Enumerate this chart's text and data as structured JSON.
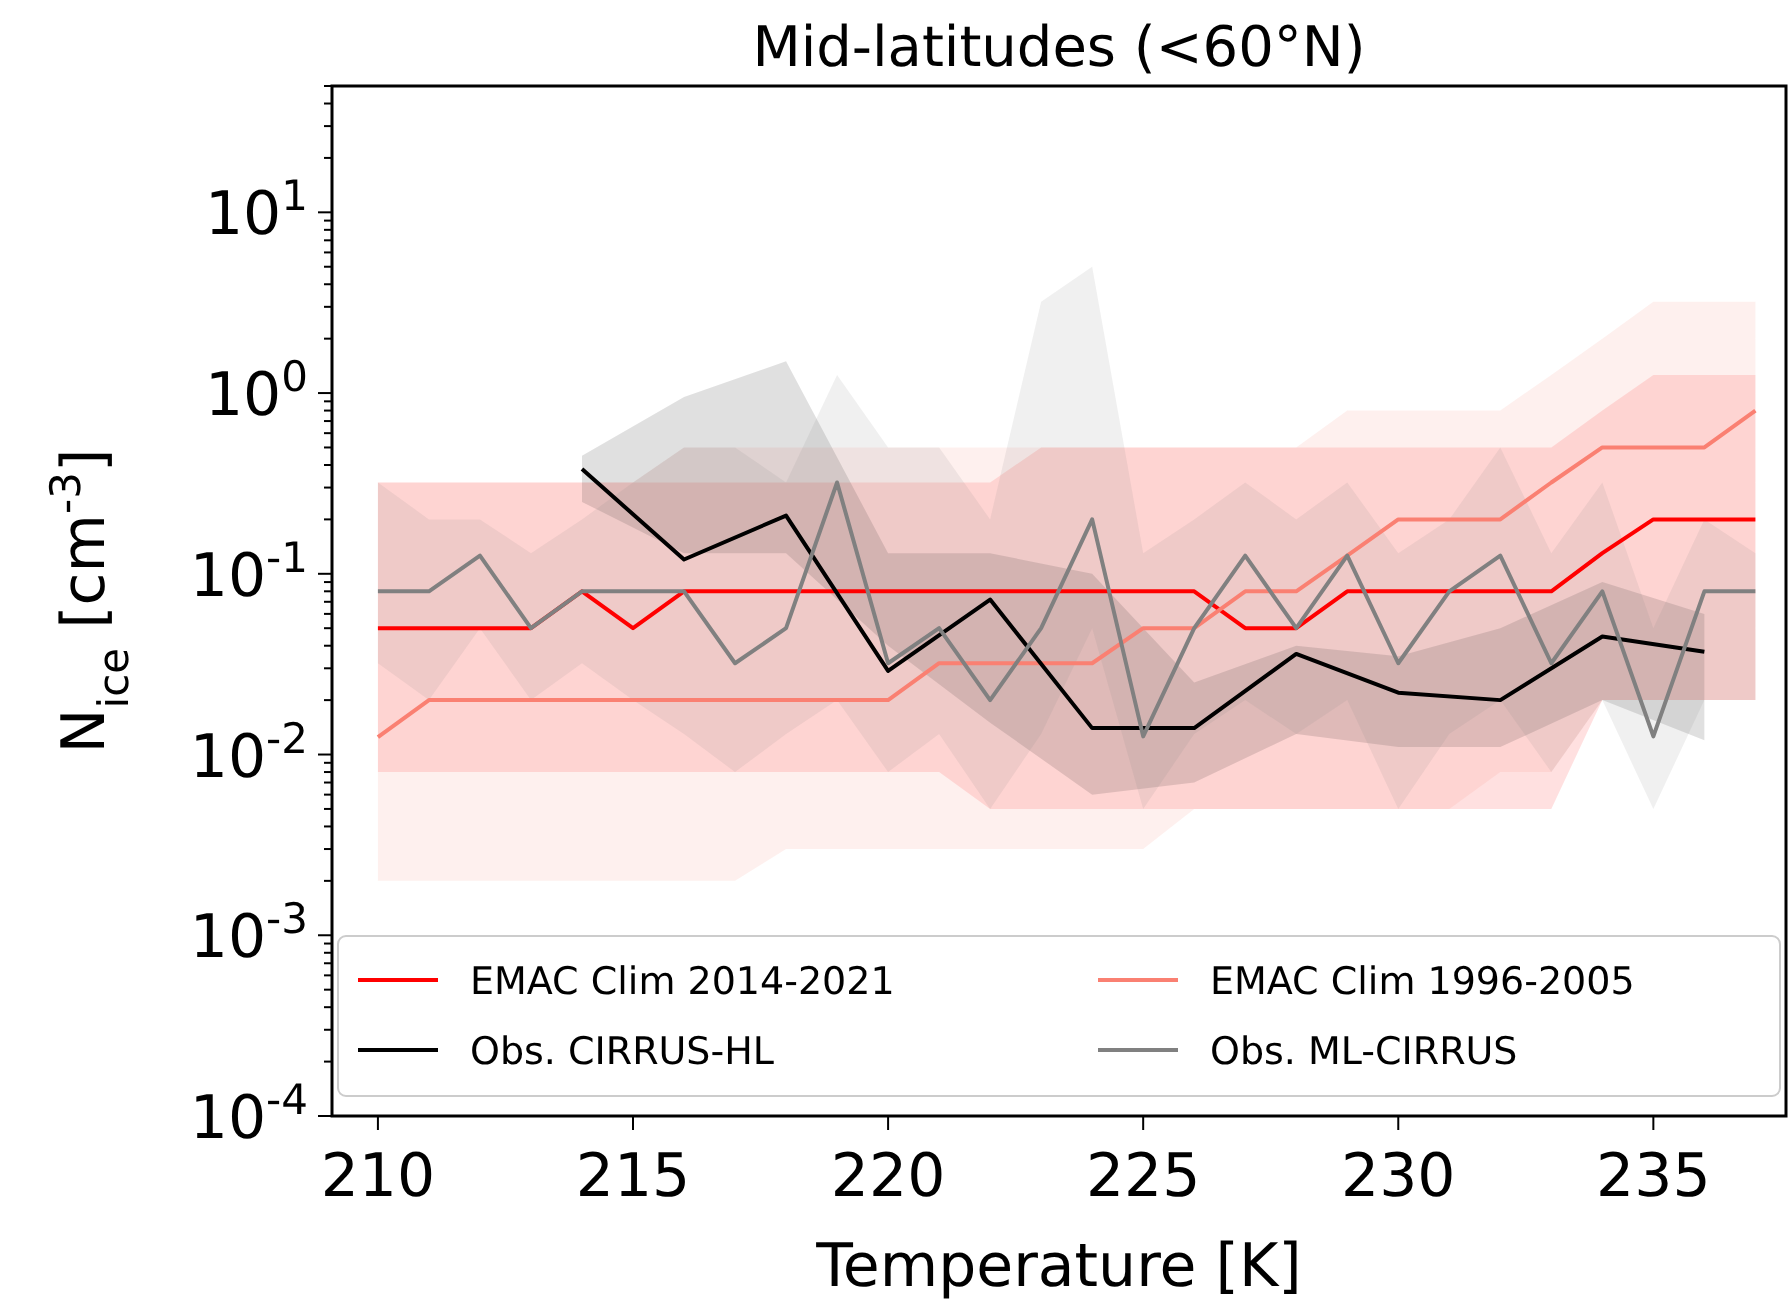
{
  "chart_data": {
    "type": "line",
    "title": "Mid-latitudes (<60°N)",
    "xlabel": "Temperature [K]",
    "ylabel": "N$_{ice}$ [cm$^{-3}$]",
    "log": "y",
    "xlim": [
      209.1,
      237.6
    ],
    "xticks": [
      210,
      215,
      220,
      225,
      230,
      235
    ],
    "ylim": [
      0.0001,
      50
    ],
    "yticks": [
      {
        "value": 0.0001,
        "label": "10$^{-4}$"
      },
      {
        "value": 0.001,
        "label": "10$^{-3}$"
      },
      {
        "value": 0.01,
        "label": "10$^{-2}$"
      },
      {
        "value": 0.1,
        "label": "10$^{-1}$"
      },
      {
        "value": 1,
        "label": "10$^{0}$"
      },
      {
        "value": 10,
        "label": "10$^{1}$"
      }
    ],
    "legend": "bottom",
    "grid": false,
    "series": [
      {
        "name": "EMAC Clim 2014-2021",
        "color": "#ff0000",
        "x": [
          210,
          211,
          212,
          213,
          214,
          215,
          216,
          217,
          218,
          219,
          220,
          221,
          222,
          223,
          224,
          225,
          226,
          227,
          228,
          229,
          230,
          231,
          232,
          233,
          234,
          235,
          236,
          237
        ],
        "values": [
          0.05,
          0.05,
          0.05,
          0.05,
          0.08,
          0.05,
          0.08,
          0.08,
          0.08,
          0.08,
          0.08,
          0.08,
          0.08,
          0.08,
          0.08,
          0.08,
          0.08,
          0.05,
          0.05,
          0.08,
          0.08,
          0.08,
          0.08,
          0.08,
          0.13,
          0.2,
          0.2,
          0.2
        ],
        "lower": [
          0.008,
          0.008,
          0.008,
          0.008,
          0.008,
          0.008,
          0.008,
          0.008,
          0.008,
          0.008,
          0.008,
          0.008,
          0.005,
          0.005,
          0.005,
          0.005,
          0.005,
          0.005,
          0.005,
          0.005,
          0.005,
          0.005,
          0.005,
          0.005,
          0.02,
          0.02,
          0.02,
          0.02
        ],
        "upper": [
          0.32,
          0.32,
          0.32,
          0.32,
          0.32,
          0.32,
          0.32,
          0.32,
          0.32,
          0.32,
          0.32,
          0.32,
          0.32,
          0.5,
          0.5,
          0.5,
          0.5,
          0.5,
          0.5,
          0.5,
          0.5,
          0.5,
          0.5,
          0.5,
          0.8,
          1.26,
          1.26,
          1.26
        ]
      },
      {
        "name": "EMAC Clim 1996-2005",
        "color": "#fa8072",
        "x": [
          210,
          211,
          212,
          213,
          214,
          215,
          216,
          217,
          218,
          219,
          220,
          221,
          222,
          223,
          224,
          225,
          226,
          227,
          228,
          229,
          230,
          231,
          232,
          233,
          234,
          235,
          236,
          237
        ],
        "values": [
          0.0125,
          0.02,
          0.02,
          0.02,
          0.02,
          0.02,
          0.02,
          0.02,
          0.02,
          0.02,
          0.02,
          0.032,
          0.032,
          0.032,
          0.032,
          0.05,
          0.05,
          0.08,
          0.08,
          0.126,
          0.2,
          0.2,
          0.2,
          0.32,
          0.5,
          0.5,
          0.5,
          0.8
        ],
        "lower": [
          0.002,
          0.002,
          0.002,
          0.002,
          0.002,
          0.002,
          0.002,
          0.002,
          0.003,
          0.003,
          0.003,
          0.003,
          0.003,
          0.003,
          0.003,
          0.003,
          0.005,
          0.005,
          0.005,
          0.005,
          0.005,
          0.005,
          0.008,
          0.008,
          0.02,
          0.02,
          0.02,
          0.02
        ],
        "upper": [
          0.32,
          0.32,
          0.32,
          0.32,
          0.32,
          0.32,
          0.5,
          0.5,
          0.5,
          0.5,
          0.5,
          0.5,
          0.5,
          0.5,
          0.5,
          0.5,
          0.5,
          0.5,
          0.5,
          0.8,
          0.8,
          0.8,
          0.8,
          1.26,
          2,
          3.2,
          3.2,
          3.2
        ]
      },
      {
        "name": "Obs. CIRRUS-HL",
        "color": "#000000",
        "x": [
          214,
          216,
          218,
          220,
          222,
          224,
          226,
          228,
          230,
          232,
          234,
          236
        ],
        "values": [
          0.38,
          0.12,
          0.21,
          0.029,
          0.072,
          0.014,
          0.014,
          0.036,
          0.022,
          0.02,
          0.045,
          0.037
        ],
        "lower": [
          0.25,
          0.13,
          0.13,
          0.04,
          0.015,
          0.006,
          0.007,
          0.013,
          0.011,
          0.011,
          0.02,
          0.012
        ],
        "upper": [
          0.45,
          0.95,
          1.5,
          0.13,
          0.13,
          0.1,
          0.025,
          0.04,
          0.035,
          0.05,
          0.09,
          0.06
        ]
      },
      {
        "name": "Obs. ML-CIRRUS",
        "color": "#808080",
        "x": [
          210,
          211,
          212,
          213,
          214,
          215,
          216,
          217,
          218,
          219,
          220,
          221,
          222,
          223,
          224,
          225,
          226,
          227,
          228,
          229,
          230,
          231,
          232,
          233,
          234,
          235,
          236,
          237
        ],
        "values": [
          0.08,
          0.08,
          0.126,
          0.05,
          0.08,
          0.08,
          0.08,
          0.032,
          0.05,
          0.32,
          0.032,
          0.05,
          0.02,
          0.05,
          0.2,
          0.0126,
          0.05,
          0.126,
          0.05,
          0.126,
          0.032,
          0.08,
          0.126,
          0.032,
          0.08,
          0.0126,
          0.08,
          0.08
        ],
        "lower": [
          0.032,
          0.02,
          0.05,
          0.02,
          0.032,
          0.02,
          0.013,
          0.008,
          0.013,
          0.02,
          0.008,
          0.013,
          0.005,
          0.013,
          0.05,
          0.005,
          0.013,
          0.02,
          0.013,
          0.02,
          0.005,
          0.013,
          0.02,
          0.008,
          0.02,
          0.005,
          0.02,
          0.02
        ],
        "upper": [
          0.32,
          0.2,
          0.2,
          0.13,
          0.2,
          0.32,
          0.5,
          0.5,
          0.32,
          1.26,
          0.5,
          0.5,
          0.2,
          3.2,
          5.0,
          0.13,
          0.2,
          0.32,
          0.2,
          0.32,
          0.13,
          0.2,
          0.5,
          0.13,
          0.32,
          0.05,
          0.2,
          0.13
        ]
      }
    ]
  }
}
